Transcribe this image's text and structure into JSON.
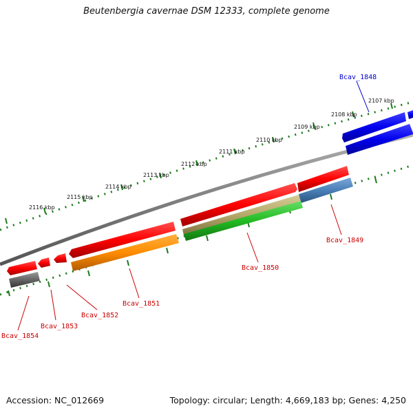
{
  "title": "Beutenbergia cavernae DSM 12333, complete genome",
  "footer": {
    "accession": "Accession: NC_012669",
    "stats": "Topology: circular; Length: 4,669,183 bp; Genes: 4,250"
  },
  "kbp_labels": [
    "2107 kbp",
    "2108 kbp",
    "2109 kbp",
    "2110 kbp",
    "2111 kbp",
    "2112 kbp",
    "2113 kbp",
    "2114 kbp",
    "2115 kbp",
    "2116 kbp"
  ],
  "gene_labels": [
    {
      "id": "Bcav_1848",
      "label": "Bcav_1848",
      "color": "#0000cc"
    },
    {
      "id": "Bcav_1849",
      "label": "Bcav_1849",
      "color": "#cc0000"
    },
    {
      "id": "Bcav_1850",
      "label": "Bcav_1850",
      "color": "#cc0000"
    },
    {
      "id": "Bcav_1851",
      "label": "Bcav_1851",
      "color": "#cc0000"
    },
    {
      "id": "Bcav_1852",
      "label": "Bcav_1852",
      "color": "#cc0000"
    },
    {
      "id": "Bcav_1853",
      "label": "Bcav_1853",
      "color": "#cc0000"
    },
    {
      "id": "Bcav_1854",
      "label": "Bcav_1854",
      "color": "#cc0000"
    }
  ],
  "colors": {
    "backbone": "#808080",
    "tick": "#1a7a1a",
    "gene_red": "#ff0000",
    "gene_blue": "#0000ee",
    "gene_orange": "#ff8c00",
    "gene_green": "#22bb22",
    "gene_olive": "#b5a86a",
    "gene_steel": "#4a7fb8",
    "gene_gray": "#666666"
  }
}
